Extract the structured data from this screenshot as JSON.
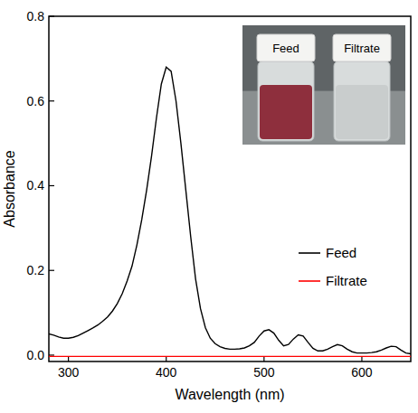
{
  "chart_data": {
    "type": "line",
    "x_label": "Wavelength (nm)",
    "y_label": "Absorbance",
    "annotations": [
      "Feed",
      "Filtrate"
    ],
    "x": [
      280,
      285,
      290,
      295,
      300,
      305,
      310,
      315,
      320,
      325,
      330,
      335,
      340,
      345,
      350,
      355,
      360,
      365,
      370,
      375,
      380,
      385,
      390,
      395,
      400,
      405,
      410,
      415,
      420,
      425,
      430,
      435,
      440,
      445,
      450,
      455,
      460,
      465,
      470,
      475,
      480,
      485,
      490,
      495,
      500,
      505,
      510,
      515,
      520,
      525,
      530,
      535,
      540,
      545,
      550,
      555,
      560,
      565,
      570,
      575,
      580,
      585,
      590,
      595,
      600,
      605,
      610,
      615,
      620,
      625,
      630,
      635,
      640,
      645,
      650
    ],
    "series": [
      {
        "name": "Feed",
        "color": "#000000",
        "values": [
          0.05,
          0.047,
          0.043,
          0.04,
          0.04,
          0.042,
          0.046,
          0.052,
          0.058,
          0.064,
          0.071,
          0.08,
          0.09,
          0.104,
          0.122,
          0.145,
          0.175,
          0.21,
          0.26,
          0.32,
          0.39,
          0.47,
          0.56,
          0.64,
          0.68,
          0.67,
          0.6,
          0.5,
          0.39,
          0.28,
          0.18,
          0.11,
          0.065,
          0.04,
          0.027,
          0.02,
          0.016,
          0.014,
          0.014,
          0.015,
          0.017,
          0.022,
          0.03,
          0.045,
          0.057,
          0.06,
          0.052,
          0.035,
          0.022,
          0.025,
          0.038,
          0.048,
          0.045,
          0.03,
          0.016,
          0.01,
          0.01,
          0.014,
          0.02,
          0.025,
          0.022,
          0.014,
          0.008,
          0.005,
          0.005,
          0.005,
          0.006,
          0.008,
          0.012,
          0.017,
          0.021,
          0.02,
          0.012,
          0.005,
          0.003
        ]
      },
      {
        "name": "Filtrate",
        "color": "#ff0000",
        "values": [
          -0.003,
          -0.003,
          -0.003,
          -0.003,
          -0.003,
          -0.003,
          -0.003,
          -0.003,
          -0.003,
          -0.003,
          -0.003,
          -0.003,
          -0.003,
          -0.003,
          -0.003,
          -0.003,
          -0.003,
          -0.003,
          -0.003,
          -0.003,
          -0.003,
          -0.003,
          -0.003,
          -0.003,
          -0.003,
          -0.003,
          -0.003,
          -0.003,
          -0.003,
          -0.003,
          -0.003,
          -0.003,
          -0.003,
          -0.003,
          -0.003,
          -0.003,
          -0.003,
          -0.003,
          -0.003,
          -0.003,
          -0.003,
          -0.003,
          -0.003,
          -0.003,
          -0.003,
          -0.003,
          -0.003,
          -0.003,
          -0.003,
          -0.003,
          -0.003,
          -0.003,
          -0.003,
          -0.003,
          -0.003,
          -0.003,
          -0.003,
          -0.003,
          -0.003,
          -0.003,
          -0.003,
          -0.003,
          -0.003,
          -0.003,
          -0.003,
          -0.003,
          -0.003,
          -0.003,
          -0.003,
          -0.003,
          -0.003,
          -0.003,
          -0.003,
          -0.003,
          -0.003
        ]
      }
    ],
    "xlim": [
      280,
      650
    ],
    "xticks": [
      300,
      400,
      500,
      600
    ],
    "ylim": [
      -0.015,
      0.8
    ],
    "yticks": [
      {
        "value": 0,
        "label": "0.0"
      },
      0.2,
      0.4,
      0.6,
      0.8
    ],
    "legend": "right",
    "grid": false
  }
}
